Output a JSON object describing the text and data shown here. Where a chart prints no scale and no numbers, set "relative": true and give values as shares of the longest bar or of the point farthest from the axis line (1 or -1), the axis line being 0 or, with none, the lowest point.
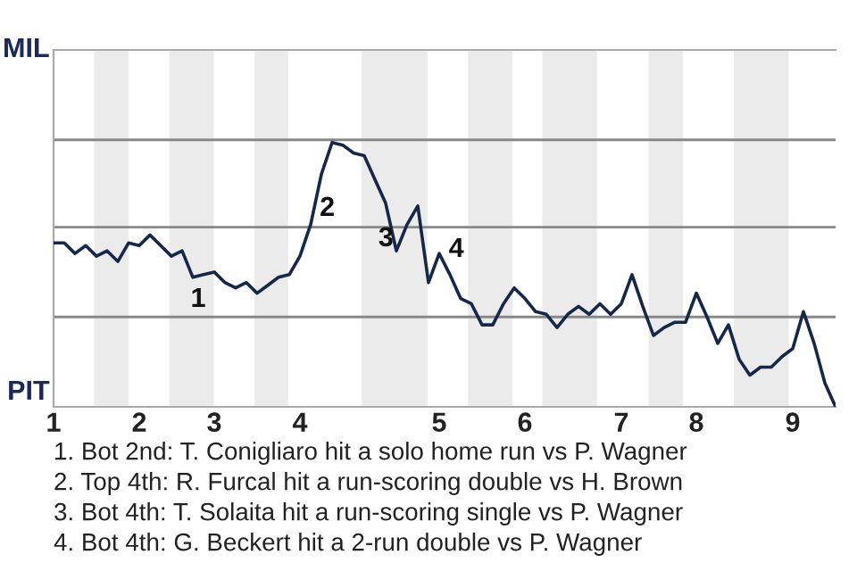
{
  "chart_data": {
    "type": "line",
    "relative": true,
    "categories": [
      "1",
      null,
      null,
      null,
      null,
      null,
      null,
      null,
      "2",
      null,
      null,
      null,
      null,
      null,
      null,
      "3",
      null,
      null,
      null,
      null,
      null,
      null,
      null,
      "4",
      null,
      null,
      null,
      null,
      null,
      null,
      null,
      null,
      null,
      null,
      null,
      null,
      "5",
      null,
      null,
      null,
      null,
      null,
      null,
      null,
      "6",
      null,
      null,
      null,
      null,
      null,
      null,
      null,
      null,
      "7",
      null,
      null,
      null,
      null,
      null,
      null,
      "8",
      null,
      null,
      null,
      null,
      null,
      null,
      null,
      null,
      "9",
      null,
      null,
      null,
      null
    ],
    "series": [
      {
        "color": "#14284b",
        "values": [
          0.62,
          0.62,
          0.58,
          0.61,
          0.57,
          0.59,
          0.55,
          0.62,
          0.61,
          0.65,
          0.61,
          0.57,
          0.59,
          0.49,
          0.5,
          0.51,
          0.47,
          0.45,
          0.47,
          0.43,
          0.46,
          0.49,
          0.5,
          0.57,
          0.69,
          0.88,
          1,
          0.99,
          0.96,
          0.95,
          0.86,
          0.77,
          0.59,
          0.69,
          0.76,
          0.47,
          0.58,
          0.5,
          0.41,
          0.39,
          0.31,
          0.31,
          0.39,
          0.45,
          0.41,
          0.36,
          0.35,
          0.3,
          0.35,
          0.38,
          0.35,
          0.39,
          0.35,
          0.39,
          0.5,
          0.38,
          0.27,
          0.3,
          0.32,
          0.32,
          0.43,
          0.34,
          0.24,
          0.31,
          0.18,
          0.12,
          0.15,
          0.15,
          0.19,
          0.22,
          0.36,
          0.24,
          0.09,
          0
        ]
      }
    ],
    "ref_lines": [
      {
        "axis": "y",
        "value": 0.34,
        "color": "#888888"
      },
      {
        "axis": "y",
        "value": 0.68,
        "color": "#888888"
      },
      {
        "axis": "y",
        "value": 1.01,
        "color": "#888888"
      }
    ],
    "marker": "none",
    "line_style": "solid",
    "legend": false,
    "annotations": [
      "MIL",
      "PIT",
      "1",
      "2",
      "3",
      "4",
      "1. Bot 2nd: T. Conigliaro hit a solo home run vs P. Wagner",
      "2. Top 4th: R. Furcal hit a run-scoring double vs H. Brown",
      "3. Bot 4th: T. Solaita hit a run-scoring single vs P. Wagner",
      "4. Bot 4th: G. Beckert hit a 2-run double vs P. Wagner"
    ]
  }
}
